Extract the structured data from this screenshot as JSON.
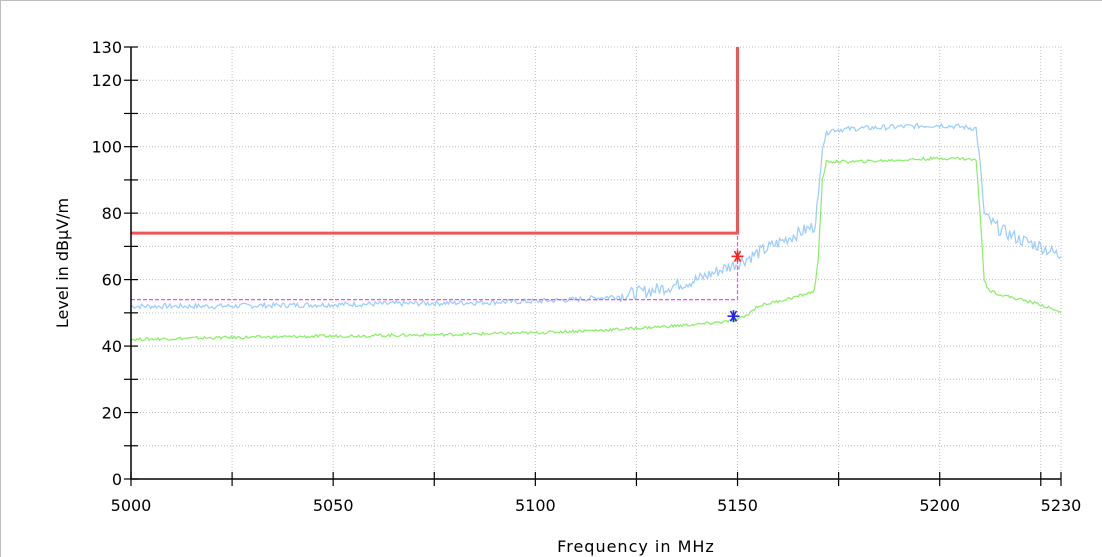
{
  "chart_data": {
    "type": "line",
    "xlabel": "Frequency in MHz",
    "ylabel": "Level in dBµV/m",
    "xlim": [
      5000,
      5230
    ],
    "ylim": [
      0,
      130
    ],
    "xticks": [
      5000,
      5050,
      5100,
      5150,
      5200,
      5230
    ],
    "yticks": [
      0,
      20,
      40,
      60,
      80,
      100,
      120,
      130
    ],
    "grid": true,
    "series": [
      {
        "color": "#99ccff",
        "x": [
          5000,
          5020,
          5050,
          5080,
          5100,
          5110,
          5120,
          5130,
          5140,
          5150,
          5160,
          5165,
          5169,
          5170,
          5171,
          5172,
          5173,
          5180,
          5190,
          5200,
          5205,
          5209,
          5210,
          5211,
          5212,
          5215,
          5220,
          5225,
          5230
        ],
        "y": [
          52,
          52,
          52.5,
          53,
          53.5,
          54,
          55,
          57,
          60,
          65,
          71,
          74,
          76,
          85,
          100,
          104,
          105,
          105.5,
          106,
          106.5,
          106,
          105.5,
          95,
          80,
          78,
          75,
          72,
          70,
          67
        ]
      },
      {
        "color": "#88ee66",
        "x": [
          5000,
          5020,
          5050,
          5080,
          5100,
          5120,
          5140,
          5148,
          5150,
          5152,
          5155,
          5160,
          5165,
          5169,
          5170,
          5171,
          5172,
          5180,
          5190,
          5200,
          5205,
          5209,
          5210,
          5211,
          5212,
          5215,
          5220,
          5225,
          5230
        ],
        "y": [
          42,
          42.5,
          43,
          43.5,
          44,
          45,
          46.5,
          47.5,
          48,
          49,
          52,
          53.5,
          55,
          56.5,
          67,
          90,
          95.5,
          95.5,
          96,
          96.5,
          96.5,
          96,
          80,
          60,
          57,
          55.5,
          54,
          52.5,
          50
        ]
      },
      {
        "color": "#ee5555",
        "x": [
          5000,
          5150,
          5150
        ],
        "y": [
          74,
          74,
          130
        ]
      },
      {
        "color": "#ff44ff",
        "x": [
          5000,
          5150,
          5150
        ],
        "y": [
          54,
          54,
          74
        ]
      }
    ],
    "markers": [
      {
        "x": 5150,
        "y": 67,
        "color": "#ff2222",
        "symbol": "asterisk"
      },
      {
        "x": 5149,
        "y": 49,
        "color": "#2222ee",
        "symbol": "asterisk"
      }
    ]
  }
}
